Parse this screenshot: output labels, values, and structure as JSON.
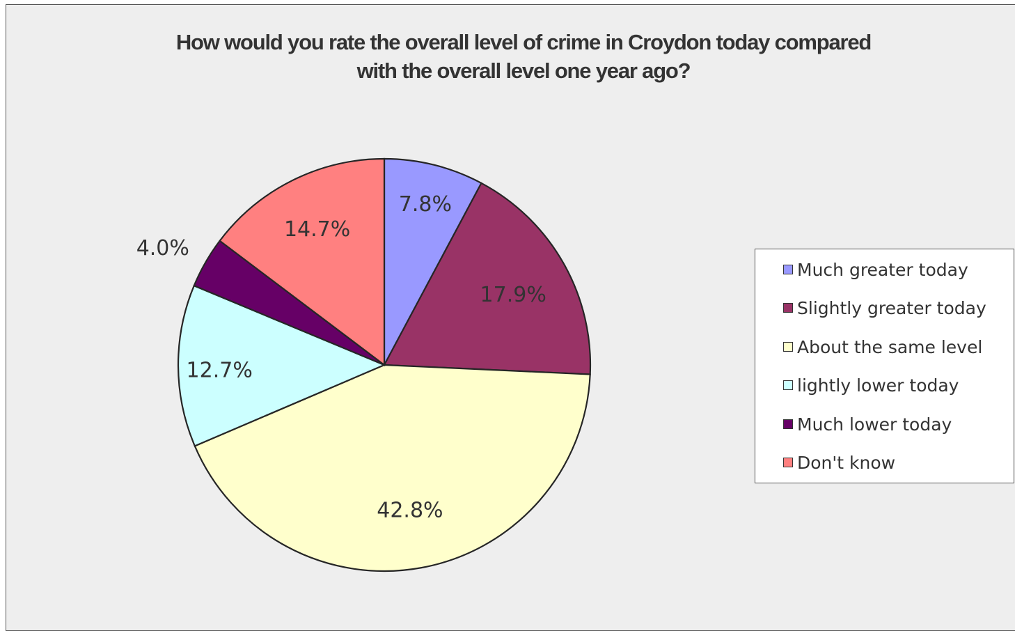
{
  "chart_data": {
    "type": "pie",
    "title": [
      "How would you rate the overall level of crime in Croydon today compared",
      "with the overall level one year ago?"
    ],
    "categories": [
      "Much greater today",
      "Slightly greater today",
      "About the same level",
      "lightly lower today",
      "Much lower today",
      "Don't know"
    ],
    "values": [
      7.8,
      17.9,
      42.8,
      12.7,
      4.0,
      14.7
    ],
    "value_labels": [
      "7.8%",
      "17.9%",
      "42.8%",
      "12.7%",
      "4.0%",
      "14.7%"
    ],
    "colors": [
      "#9999ff",
      "#993366",
      "#ffffcc",
      "#ccffff",
      "#660066",
      "#ff8080"
    ],
    "start_angle": "12 o'clock",
    "direction": "clockwise",
    "legend_position": "right"
  }
}
